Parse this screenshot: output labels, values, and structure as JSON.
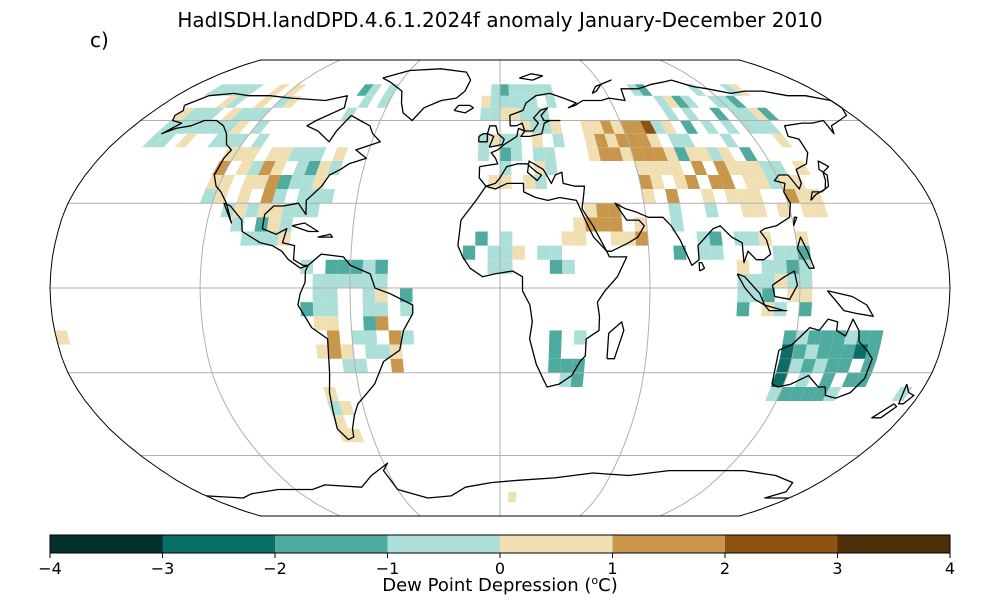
{
  "title": "HadISDH.landDPD.4.6.1.2024f anomaly January-December 2010",
  "panel_label": "c)",
  "colorbar": {
    "label_main": "Dew Point Depression (",
    "label_sup": "o",
    "label_end": "C)",
    "ticks": [
      "−4",
      "−3",
      "−2",
      "−1",
      "0",
      "1",
      "2",
      "3",
      "4"
    ],
    "colors": [
      "#02302b",
      "#0a6e66",
      "#4fab9f",
      "#abdfd8",
      "#f1dfb4",
      "#c9974b",
      "#8d5211",
      "#4e2f0a"
    ],
    "range": [
      -4,
      4
    ]
  },
  "map": {
    "projection": "Robinson",
    "ocean_color": "#ffffff",
    "grid_color": "#b0b0b0",
    "coast_color": "#000000",
    "cell_size_deg": 5
  }
}
